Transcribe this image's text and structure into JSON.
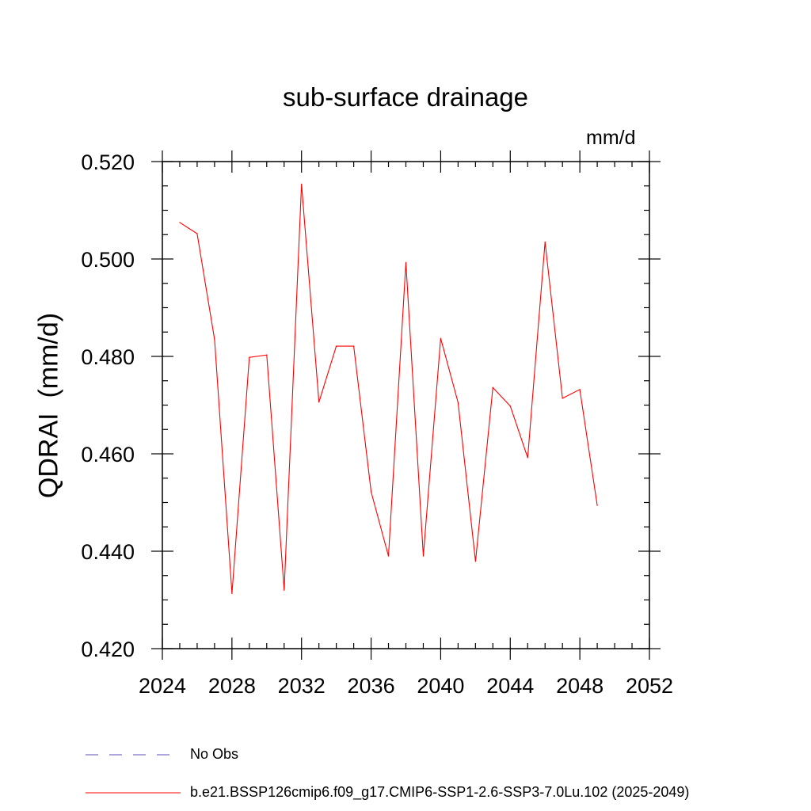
{
  "chart_data": {
    "type": "line",
    "title": "sub-surface drainage",
    "units_label": "mm/d",
    "ylabel": "QDRAI  (mm/d)",
    "xlabel": "",
    "xlim": [
      2024,
      2052
    ],
    "ylim": [
      0.42,
      0.52
    ],
    "xticks": [
      2024,
      2028,
      2032,
      2036,
      2040,
      2044,
      2048,
      2052
    ],
    "yticks": [
      0.42,
      0.44,
      0.46,
      0.48,
      0.5,
      0.52
    ],
    "ytick_labels": [
      "0.420",
      "0.440",
      "0.460",
      "0.480",
      "0.500",
      "0.520"
    ],
    "series": [
      {
        "name": "b.e21.BSSP126cmip6.f09_g17.CMIP6-SSP1-2.6-SSP3-7.0Lu.102 (2025-2049)",
        "color": "#ff0000",
        "x": [
          2025,
          2026,
          2027,
          2028,
          2029,
          2030,
          2031,
          2032,
          2033,
          2034,
          2035,
          2036,
          2037,
          2038,
          2039,
          2040,
          2041,
          2042,
          2043,
          2044,
          2045,
          2046,
          2047,
          2048,
          2049
        ],
        "values": [
          0.5075,
          0.5052,
          0.4835,
          0.4313,
          0.4798,
          0.4803,
          0.432,
          0.5154,
          0.4706,
          0.4821,
          0.4821,
          0.4522,
          0.439,
          0.4993,
          0.439,
          0.4837,
          0.4705,
          0.4379,
          0.4736,
          0.4698,
          0.4592,
          0.5035,
          0.4714,
          0.4732,
          0.4494
        ]
      }
    ],
    "legend": [
      {
        "label": "No Obs",
        "style": "dashed",
        "color": "#5a4fbf"
      },
      {
        "label": "b.e21.BSSP126cmip6.f09_g17.CMIP6-SSP1-2.6-SSP3-7.0Lu.102 (2025-2049)",
        "style": "solid",
        "color": "#ff0000"
      }
    ],
    "grid": false,
    "legend_position": "bottom-left"
  }
}
